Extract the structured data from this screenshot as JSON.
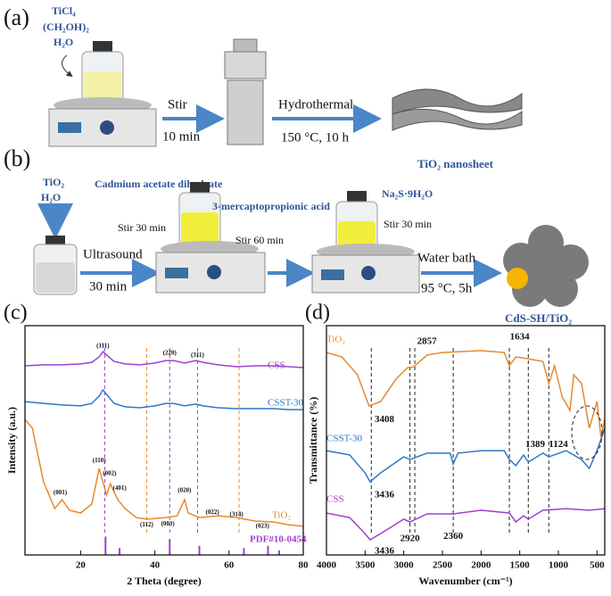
{
  "schematic": {
    "a": {
      "label": "(a)",
      "reagent_1": "TiCl₄",
      "reagent_2": "(CH₂OH)₂",
      "reagent_3": "H₂O",
      "step_1_top": "Stir",
      "step_1_bottom": "10 min",
      "step_2_top": "Hydrothermal",
      "step_2_bottom": "150 °C, 10 h",
      "product": "TiO₂ nanosheet"
    },
    "b": {
      "label": "(b)",
      "reagent_1": "TiO₂",
      "reagent_2": "H₂O",
      "cd_source": "Cadmium acetate dihydrate",
      "stir_1": "Stir 30 min",
      "ligand": "3-mercaptopropionic acid",
      "stir_2": "Stir 60 min",
      "step_1_top": "Ultrasound",
      "step_1_bottom": "30 min",
      "s_source": "Na₂S·9H₂O",
      "stir_3": "Stir 30 min",
      "step_2_top": "Water bath",
      "step_2_bottom": "95 °C, 5h",
      "product": "CdS-SH/TiO₂"
    }
  },
  "chart_data": [
    {
      "type": "line",
      "panel": "(c)",
      "xlabel": "2 Theta (degree)",
      "ylabel": "Intensity (a.u.)",
      "xlim": [
        5,
        80
      ],
      "xticks": [
        20,
        40,
        60,
        80
      ],
      "ylim": [
        0,
        100
      ],
      "series": [
        {
          "name": "CSS",
          "color": "#a040d0",
          "x": [
            5,
            10,
            15,
            20,
            23,
            25,
            26,
            27,
            29,
            32,
            36,
            40,
            43,
            45,
            48,
            51,
            53,
            57,
            62,
            67,
            72,
            76,
            80
          ],
          "values": [
            82.5,
            82.9,
            82.9,
            83.3,
            84.0,
            86.4,
            88.7,
            87.2,
            84.4,
            83.3,
            82.9,
            83.7,
            84.8,
            84.8,
            83.7,
            84.8,
            84.0,
            82.9,
            82.1,
            82.5,
            82.5,
            82.1,
            81.7
          ]
        },
        {
          "name": "CSST-30",
          "color": "#2f78c4",
          "x": [
            5,
            10,
            15,
            20,
            23,
            25,
            26,
            27,
            29,
            32,
            36,
            40,
            43,
            45,
            48,
            51,
            53,
            57,
            62,
            67,
            72,
            76,
            80
          ],
          "values": [
            66.9,
            66.1,
            65.4,
            65.0,
            66.1,
            69.3,
            72.0,
            70.0,
            66.1,
            64.6,
            64.2,
            65.0,
            66.1,
            66.1,
            65.0,
            65.8,
            65.0,
            64.2,
            63.8,
            63.8,
            63.8,
            63.4,
            63.4
          ]
        },
        {
          "name": "TiO₂",
          "color": "#e8892e",
          "x": [
            5,
            7,
            10,
            13,
            15,
            17,
            20,
            23,
            25,
            26,
            27,
            28,
            30,
            32,
            35,
            38,
            43,
            46,
            48,
            49,
            52,
            57,
            62,
            67,
            72,
            76,
            80
          ],
          "values": [
            59.1,
            55.3,
            31.9,
            20.2,
            24.1,
            19.5,
            18.3,
            22.2,
            37.7,
            31.9,
            26.1,
            31.1,
            24.1,
            20.2,
            16.3,
            15.6,
            16.3,
            17.1,
            24.1,
            18.3,
            16.3,
            17.1,
            16.3,
            14.8,
            14.4,
            13.2,
            12.5
          ]
        }
      ],
      "reference": {
        "name": "PDF#10-0454",
        "color": "#a040d0",
        "x": [
          26.7,
          30.5,
          44.0,
          52.0,
          64.0,
          70.5,
          73.5
        ],
        "values": [
          8,
          3,
          7,
          4,
          3,
          4,
          2
        ]
      },
      "guides": [
        {
          "x": 26.5,
          "color": "#a040d0"
        },
        {
          "x": 44,
          "color": "#a040d0"
        },
        {
          "x": 51.5,
          "color": "#a040d0"
        },
        {
          "x": 37.8,
          "color": "#e8892e"
        },
        {
          "x": 62.7,
          "color": "#e8892e"
        }
      ],
      "annotations": [
        {
          "text": "(111)",
          "x": 26,
          "y": 91
        },
        {
          "text": "(220)",
          "x": 44,
          "y": 88
        },
        {
          "text": "(311)",
          "x": 51.5,
          "y": 87
        },
        {
          "text": "(110)",
          "x": 25,
          "y": 41
        },
        {
          "text": "(002)",
          "x": 27.8,
          "y": 35.5
        },
        {
          "text": "(401)",
          "x": 30.5,
          "y": 29
        },
        {
          "text": "(001)",
          "x": 14.5,
          "y": 27
        },
        {
          "text": "(112)",
          "x": 37.8,
          "y": 13
        },
        {
          "text": "(003)",
          "x": 43.5,
          "y": 13.5
        },
        {
          "text": "(020)",
          "x": 48,
          "y": 28
        },
        {
          "text": "(022)",
          "x": 55.5,
          "y": 18.5
        },
        {
          "text": "(314)",
          "x": 62,
          "y": 17.5
        },
        {
          "text": "(023)",
          "x": 69,
          "y": 12.5
        }
      ]
    },
    {
      "type": "line",
      "panel": "(d)",
      "xlabel": "Wavenumber (cm⁻¹)",
      "ylabel": "Transmittance (%)",
      "xlim": [
        4000,
        400
      ],
      "xticks": [
        4000,
        3500,
        3000,
        2500,
        2000,
        1500,
        1000,
        500
      ],
      "ylim": [
        0,
        100
      ],
      "series": [
        {
          "name": "TiO₂",
          "color": "#e8892e",
          "x": [
            4000,
            3800,
            3600,
            3450,
            3300,
            3100,
            2950,
            2900,
            2857,
            2700,
            2500,
            2000,
            1700,
            1634,
            1550,
            1400,
            1200,
            1124,
            1050,
            950,
            850,
            800,
            700,
            600,
            500,
            450,
            400
          ],
          "values": [
            88.3,
            86.4,
            78.6,
            65.0,
            66.9,
            76.7,
            81.7,
            81.7,
            82.5,
            87.2,
            88.3,
            89.1,
            88.3,
            82.5,
            86.4,
            85.6,
            84.4,
            74.7,
            82.5,
            68.9,
            63.0,
            78.6,
            74.7,
            55.3,
            66.9,
            51.4,
            59.1
          ]
        },
        {
          "name": "CSST-30",
          "color": "#2f78c4",
          "x": [
            4000,
            3700,
            3500,
            3436,
            3300,
            3000,
            2920,
            2700,
            2400,
            2360,
            2300,
            2000,
            1700,
            1634,
            1550,
            1450,
            1389,
            1200,
            1124,
            900,
            700,
            600,
            500,
            400
          ],
          "values": [
            45.5,
            43.6,
            35.8,
            31.9,
            35.8,
            42.8,
            41.6,
            44.4,
            44.4,
            39.7,
            44.4,
            45.5,
            45.5,
            41.6,
            38.9,
            43.6,
            40.5,
            44.4,
            42.8,
            45.5,
            41.6,
            37.7,
            45.5,
            55.3
          ]
        },
        {
          "name": "CSS",
          "color": "#a040d0",
          "x": [
            4000,
            3700,
            3500,
            3436,
            3300,
            3000,
            2920,
            2700,
            2360,
            2000,
            1634,
            1550,
            1450,
            1389,
            1200,
            900,
            600,
            400
          ],
          "values": [
            18.3,
            16.3,
            9.3,
            6.6,
            9.3,
            15.6,
            14.4,
            17.9,
            17.9,
            19.5,
            18.3,
            14.4,
            17.1,
            15.6,
            19.5,
            20.2,
            19.5,
            20.2
          ]
        }
      ],
      "guides": [
        {
          "x": 3420,
          "color": "#222"
        },
        {
          "x": 2920,
          "color": "#222"
        },
        {
          "x": 2857,
          "color": "#222"
        },
        {
          "x": 2360,
          "color": "#222"
        },
        {
          "x": 1634,
          "color": "#222"
        },
        {
          "x": 1389,
          "color": "#222"
        },
        {
          "x": 1124,
          "color": "#222"
        }
      ],
      "annotations": [
        {
          "text": "3408",
          "x": 3250,
          "y": 59
        },
        {
          "text": "2857",
          "x": 2700,
          "y": 93
        },
        {
          "text": "1634",
          "x": 1500,
          "y": 95
        },
        {
          "text": "3436",
          "x": 3250,
          "y": 26
        },
        {
          "text": "1389",
          "x": 1300,
          "y": 48
        },
        {
          "text": "1124",
          "x": 1000,
          "y": 48
        },
        {
          "text": "3436",
          "x": 3250,
          "y": 1.5
        },
        {
          "text": "2920",
          "x": 2920,
          "y": 7
        },
        {
          "text": "2360",
          "x": 2360,
          "y": 8
        }
      ]
    }
  ]
}
